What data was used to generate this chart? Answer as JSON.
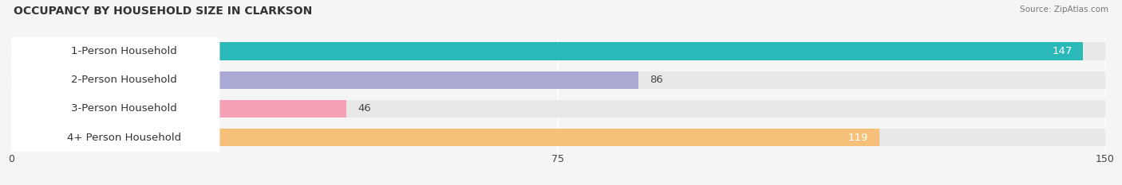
{
  "title": "OCCUPANCY BY HOUSEHOLD SIZE IN CLARKSON",
  "source": "Source: ZipAtlas.com",
  "categories": [
    "1-Person Household",
    "2-Person Household",
    "3-Person Household",
    "4+ Person Household"
  ],
  "values": [
    147,
    86,
    46,
    119
  ],
  "bar_colors": [
    "#2ab8b8",
    "#a9a9d4",
    "#f4a0b5",
    "#f5c07a"
  ],
  "bar_bg_color": "#e8e8e8",
  "xlim": [
    0,
    150
  ],
  "xticks": [
    0,
    75,
    150
  ],
  "value_label_color_inside": [
    "white",
    "black",
    "black",
    "white"
  ],
  "background_color": "#f5f5f5",
  "title_fontsize": 10,
  "bar_height": 0.62,
  "label_fontsize": 9.5,
  "value_fontsize": 9.5
}
